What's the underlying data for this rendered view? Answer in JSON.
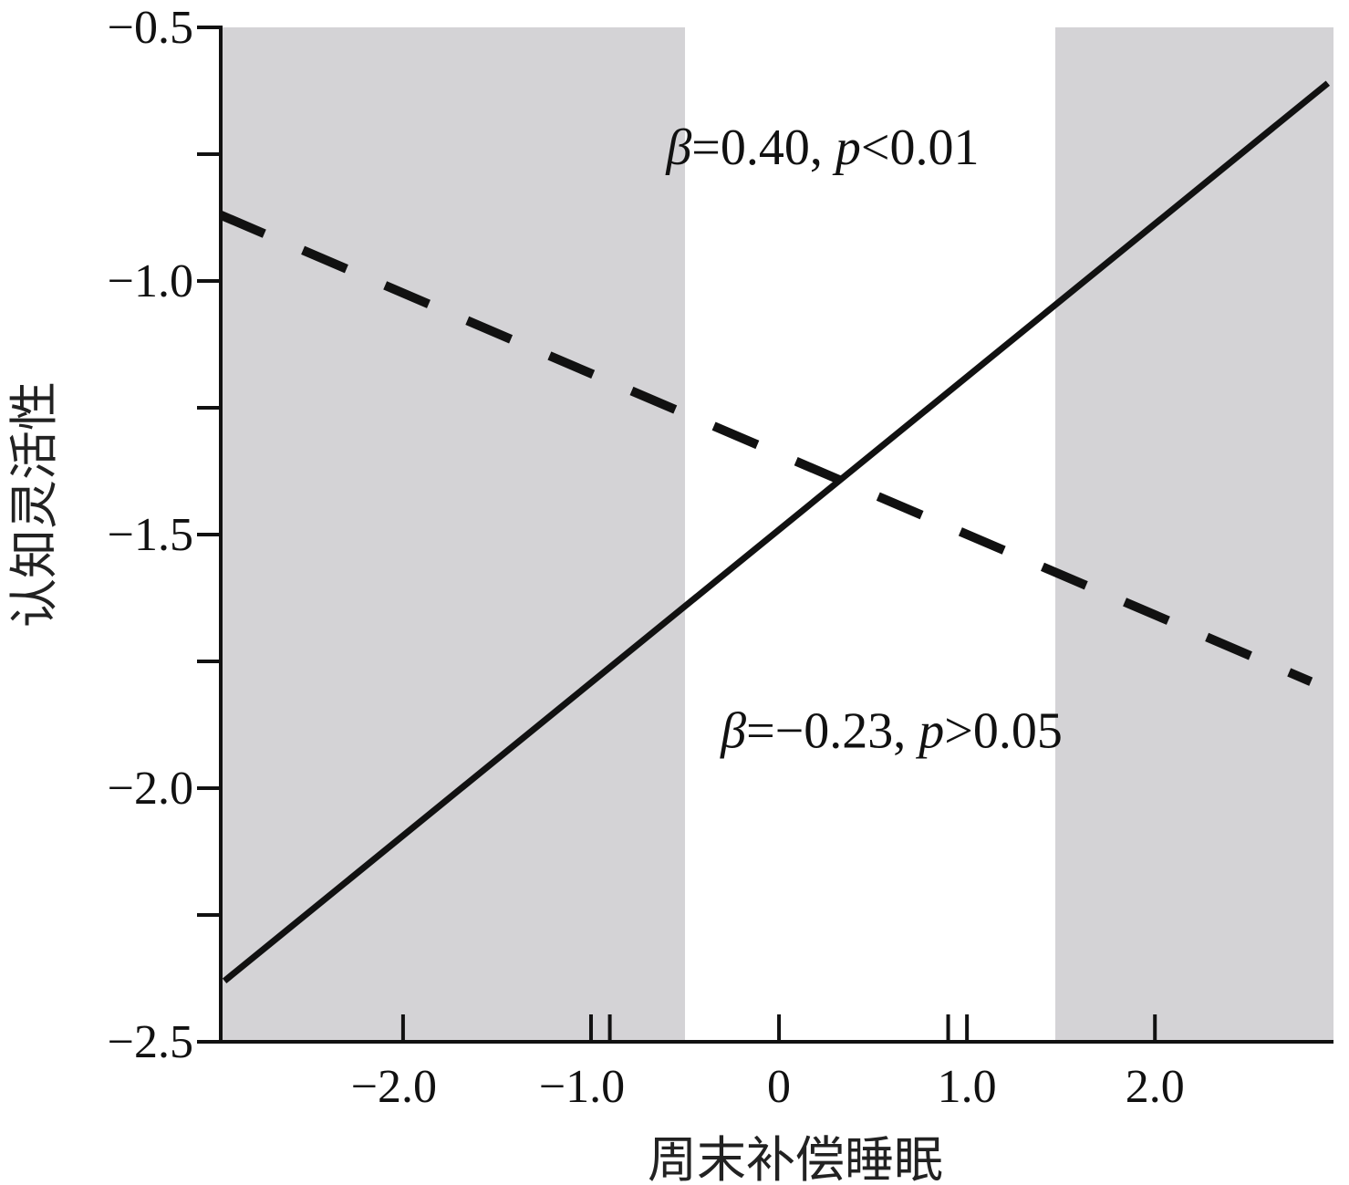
{
  "chart_data": {
    "type": "line",
    "xlabel": "周末补偿睡眠",
    "ylabel": "认知灵活性",
    "xlim": [
      -2.97,
      2.95
    ],
    "ylim": [
      -2.5,
      -0.5
    ],
    "x_ticks": [
      -2.0,
      -1.0,
      0,
      1.0,
      2.0
    ],
    "x_tick_labels": [
      "−2.0",
      "−1.0",
      "0",
      "1.0",
      "2.0"
    ],
    "x_minor_ticks": [
      -0.9,
      0.9
    ],
    "y_ticks": [
      -0.5,
      -1.0,
      -1.5,
      -2.0,
      -2.5
    ],
    "y_tick_labels": [
      "−0.5",
      "−1.0",
      "−1.5",
      "−2.0",
      "−2.5"
    ],
    "y_minor_ticks": [
      -0.75,
      -1.25,
      -1.75,
      -2.25
    ],
    "shaded_regions": [
      {
        "x_from": -2.97,
        "x_to": -0.5,
        "color": "#d4d3d6"
      },
      {
        "x_from": 1.47,
        "x_to": 2.95,
        "color": "#d4d3d6"
      }
    ],
    "series": [
      {
        "style": "solid",
        "x": [
          -2.95,
          2.92
        ],
        "y": [
          -2.38,
          -0.61
        ],
        "color": "#111111"
      },
      {
        "style": "dashed",
        "x": [
          -2.97,
          2.83
        ],
        "y": [
          -0.87,
          -1.79
        ],
        "color": "#111111"
      }
    ],
    "annotations": [
      {
        "symbol": "β",
        "text": "=0.40, ",
        "p_symbol": "p",
        "p_text": "<0.01",
        "x": -0.6,
        "y": -0.77
      },
      {
        "symbol": "β",
        "text": "=−0.23, ",
        "p_symbol": "p",
        "p_text": ">0.05",
        "x": -0.31,
        "y": -1.92
      }
    ],
    "grid": false,
    "legend": "none"
  }
}
